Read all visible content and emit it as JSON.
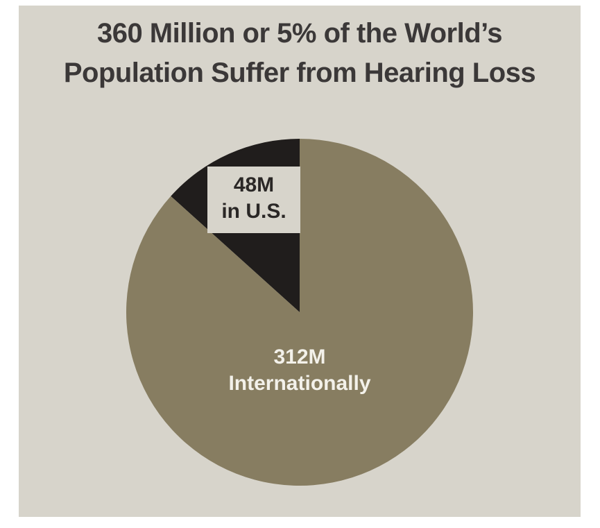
{
  "title": {
    "line1": "360 Million or 5% of the World’s",
    "line2": "Population Suffer from Hearing Loss"
  },
  "chart_data": {
    "type": "pie",
    "title": "360 Million or 5% of the World’s Population Suffer from Hearing Loss",
    "total": 360,
    "start_angle_deg": -48,
    "legend_position": "none",
    "labels_on_chart": true,
    "slices": [
      {
        "name": "us",
        "label": "48M in U.S.",
        "label_lines": [
          "48M",
          "in U.S."
        ],
        "value": 48,
        "color": "#201d1c"
      },
      {
        "name": "international",
        "label": "312M Internationally",
        "label_lines": [
          "312M",
          "Internationally"
        ],
        "value": 312,
        "color": "#877d61"
      }
    ]
  },
  "colors": {
    "page": "#ffffff",
    "background": "#d7d4cb",
    "title_text": "#3b3838",
    "us_label_text": "#2a2726",
    "intl_label_text": "#f3f1ea",
    "us_slice": "#201d1c",
    "international_slice": "#877d61"
  }
}
